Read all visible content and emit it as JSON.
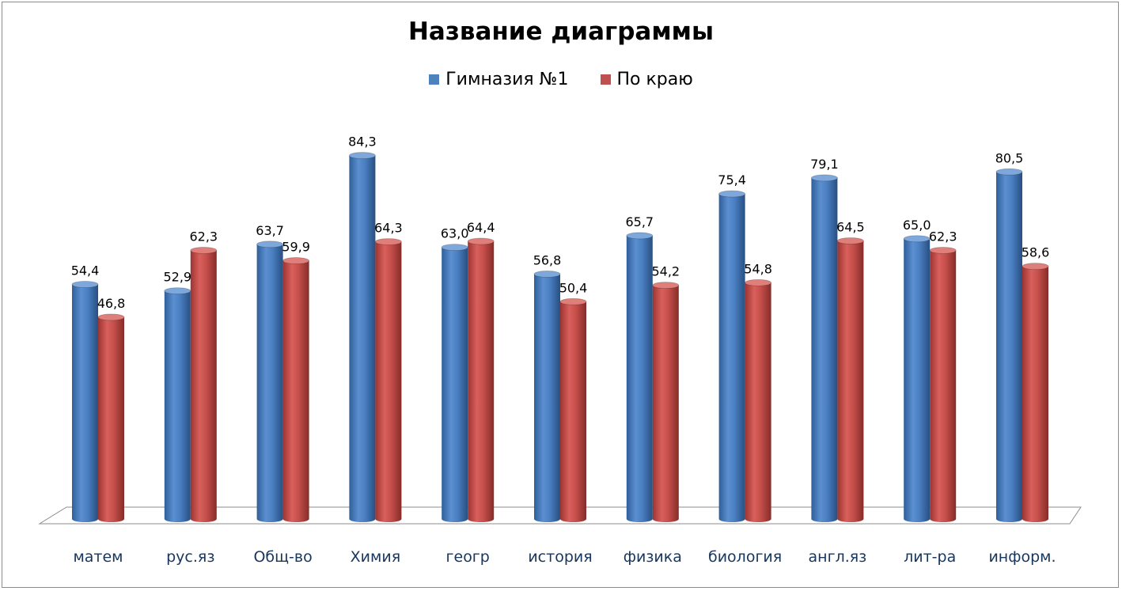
{
  "chart_data": {
    "type": "bar",
    "title": "Название диаграммы",
    "xlabel": "",
    "ylabel": "",
    "ylim": [
      0,
      100
    ],
    "grid": false,
    "legend_position": "top",
    "categories": [
      "матем",
      "рус.яз",
      "Общ-во",
      "Химия",
      "геогр",
      "история",
      "физика",
      "биология",
      "англ.яз",
      "лит-ра",
      "информ."
    ],
    "series": [
      {
        "name": "Гимназия №1",
        "color": "#4f81bd",
        "values": [
          54.4,
          52.9,
          63.7,
          84.3,
          63.0,
          56.8,
          65.7,
          75.4,
          79.1,
          65.0,
          80.5
        ],
        "labels": [
          "54,4",
          "52,9",
          "63,7",
          "84,3",
          "63,0",
          "56,8",
          "65,7",
          "75,4",
          "79,1",
          "65,0",
          "80,5"
        ]
      },
      {
        "name": "По краю",
        "color": "#c0504d",
        "values": [
          46.8,
          62.3,
          59.9,
          64.3,
          64.4,
          50.4,
          54.2,
          54.8,
          64.5,
          62.3,
          58.6
        ],
        "labels": [
          "46,8",
          "62,3",
          "59,9",
          "64,3",
          "64,4",
          "50,4",
          "54,2",
          "54,8",
          "64,5",
          "62,3",
          "58,6"
        ]
      }
    ]
  }
}
